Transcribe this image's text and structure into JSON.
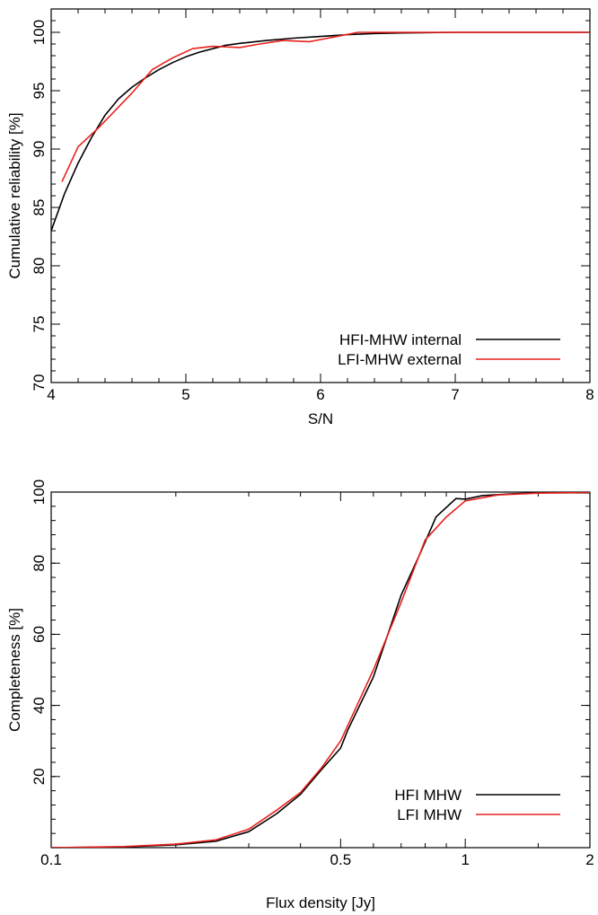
{
  "chart_data": [
    {
      "type": "line",
      "title": "",
      "xlabel": "S/N",
      "ylabel": "Cumulative reliability [%]",
      "xlim": [
        4,
        8
      ],
      "ylim": [
        70,
        102
      ],
      "x_scale": "linear",
      "x_ticks": [
        4,
        5,
        6,
        7,
        8
      ],
      "y_ticks": [
        70,
        75,
        80,
        85,
        90,
        95,
        100
      ],
      "grid": false,
      "legend_position": "bottom-right",
      "series": [
        {
          "name": "HFI-MHW internal",
          "color": "#000000",
          "points": [
            [
              4.0,
              83.0
            ],
            [
              4.1,
              86.2
            ],
            [
              4.2,
              88.8
            ],
            [
              4.3,
              91.0
            ],
            [
              4.4,
              92.9
            ],
            [
              4.5,
              94.3
            ],
            [
              4.6,
              95.3
            ],
            [
              4.7,
              96.1
            ],
            [
              4.8,
              96.8
            ],
            [
              4.9,
              97.4
            ],
            [
              5.0,
              97.9
            ],
            [
              5.1,
              98.3
            ],
            [
              5.2,
              98.6
            ],
            [
              5.3,
              98.9
            ],
            [
              5.4,
              99.05
            ],
            [
              5.6,
              99.3
            ],
            [
              5.8,
              99.5
            ],
            [
              6.0,
              99.65
            ],
            [
              6.2,
              99.8
            ],
            [
              6.4,
              99.9
            ],
            [
              6.6,
              99.95
            ],
            [
              7.0,
              100.0
            ],
            [
              8.0,
              100.0
            ]
          ]
        },
        {
          "name": "LFI-MHW external",
          "color": "#e8211c",
          "points": [
            [
              4.08,
              87.2
            ],
            [
              4.2,
              90.2
            ],
            [
              4.35,
              91.8
            ],
            [
              4.5,
              93.6
            ],
            [
              4.6,
              94.8
            ],
            [
              4.75,
              96.8
            ],
            [
              4.9,
              97.8
            ],
            [
              5.05,
              98.6
            ],
            [
              5.2,
              98.8
            ],
            [
              5.4,
              98.7
            ],
            [
              5.55,
              99.0
            ],
            [
              5.72,
              99.3
            ],
            [
              5.92,
              99.2
            ],
            [
              6.1,
              99.6
            ],
            [
              6.28,
              100.0
            ],
            [
              6.5,
              100.0
            ],
            [
              8.0,
              100.0
            ]
          ]
        }
      ]
    },
    {
      "type": "line",
      "title": "",
      "xlabel": "Flux density [Jy]",
      "ylabel": "Completeness [%]",
      "xlim": [
        0.1,
        2
      ],
      "ylim": [
        0,
        100
      ],
      "x_scale": "log",
      "x_ticks": [
        0.1,
        0.5,
        1,
        2
      ],
      "x_tick_labels": [
        "0.1",
        "0.5",
        "1",
        "2"
      ],
      "y_ticks": [
        20,
        40,
        60,
        80,
        100
      ],
      "grid": false,
      "legend_position": "bottom-right",
      "series": [
        {
          "name": "HFI MHW",
          "color": "#000000",
          "points": [
            [
              0.1,
              0.0
            ],
            [
              0.15,
              0.2
            ],
            [
              0.2,
              0.8
            ],
            [
              0.25,
              1.8
            ],
            [
              0.3,
              4.5
            ],
            [
              0.35,
              9.5
            ],
            [
              0.4,
              15.0
            ],
            [
              0.45,
              22.0
            ],
            [
              0.5,
              28.0
            ],
            [
              0.52,
              33.0
            ],
            [
              0.6,
              48.0
            ],
            [
              0.7,
              71.0
            ],
            [
              0.78,
              83.0
            ],
            [
              0.85,
              93.0
            ],
            [
              0.95,
              98.2
            ],
            [
              1.0,
              98.0
            ],
            [
              1.1,
              99.0
            ],
            [
              1.3,
              99.5
            ],
            [
              1.5,
              99.8
            ],
            [
              2.0,
              99.8
            ]
          ]
        },
        {
          "name": "LFI MHW",
          "color": "#e8211c",
          "points": [
            [
              0.1,
              0.0
            ],
            [
              0.15,
              0.3
            ],
            [
              0.2,
              1.0
            ],
            [
              0.25,
              2.2
            ],
            [
              0.3,
              5.2
            ],
            [
              0.35,
              10.5
            ],
            [
              0.4,
              15.5
            ],
            [
              0.45,
              22.5
            ],
            [
              0.5,
              30.0
            ],
            [
              0.6,
              50.0
            ],
            [
              0.7,
              69.0
            ],
            [
              0.8,
              86.5
            ],
            [
              0.9,
              93.0
            ],
            [
              1.0,
              97.5
            ],
            [
              1.2,
              99.2
            ],
            [
              1.5,
              99.7
            ],
            [
              2.0,
              99.9
            ]
          ]
        }
      ]
    }
  ]
}
